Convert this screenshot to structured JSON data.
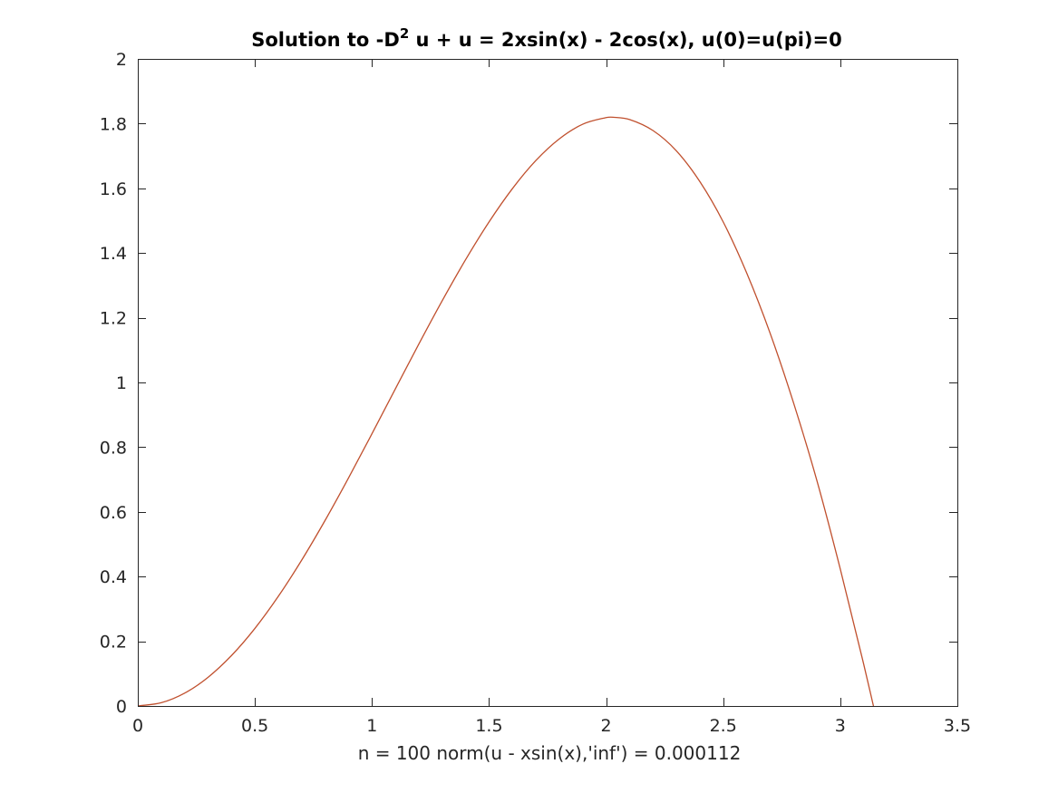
{
  "chart_data": {
    "type": "line",
    "title": {
      "prefix": "Solution to   -D",
      "superscript": "2",
      "suffix": " u + u = 2xsin(x) - 2cos(x), u(0)=u(pi)=0"
    },
    "xlabel": "n = 100    norm(u - xsin(x),'inf') =    0.000112",
    "ylabel": "",
    "xlim": [
      0,
      3.5
    ],
    "ylim": [
      0,
      2
    ],
    "xticks": [
      0,
      0.5,
      1,
      1.5,
      2,
      2.5,
      3,
      3.5
    ],
    "xtick_labels": [
      "0",
      "0.5",
      "1",
      "1.5",
      "2",
      "2.5",
      "3",
      "3.5"
    ],
    "yticks": [
      0,
      0.2,
      0.4,
      0.6,
      0.8,
      1,
      1.2,
      1.4,
      1.6,
      1.8,
      2
    ],
    "ytick_labels": [
      "0",
      "0.2",
      "0.4",
      "0.6",
      "0.8",
      "1",
      "1.2",
      "1.4",
      "1.6",
      "1.8",
      "2"
    ],
    "grid": false,
    "series": [
      {
        "color": "#c0502e",
        "x": [
          0,
          0.1,
          0.2,
          0.3,
          0.4,
          0.5,
          0.6,
          0.7,
          0.8,
          0.9,
          1.0,
          1.1,
          1.2,
          1.3,
          1.4,
          1.5,
          1.6,
          1.7,
          1.8,
          1.9,
          2.0,
          2.03,
          2.1,
          2.2,
          2.3,
          2.4,
          2.5,
          2.6,
          2.7,
          2.8,
          2.9,
          3.0,
          3.1,
          3.1416
        ],
        "y": [
          0,
          0.01,
          0.0397,
          0.0887,
          0.1558,
          0.2397,
          0.3388,
          0.451,
          0.5739,
          0.705,
          0.8415,
          0.9803,
          1.1185,
          1.2526,
          1.3796,
          1.4962,
          1.5993,
          1.686,
          1.7529,
          1.7981,
          1.8186,
          1.8197,
          1.8127,
          1.7787,
          1.716,
          1.6211,
          1.4962,
          1.3389,
          1.1529,
          0.9378,
          0.6969,
          0.4234,
          0.129,
          0
        ]
      }
    ]
  }
}
